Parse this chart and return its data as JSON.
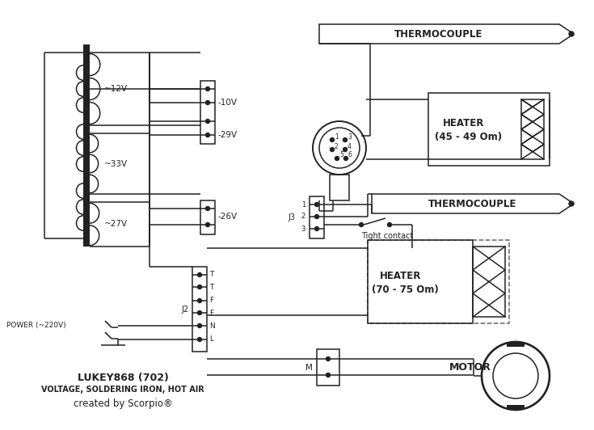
{
  "bg_color": "#ffffff",
  "line_color": "#222222",
  "title1": "LUKEY868 (702)",
  "title2": "VOLTAGE, SOLDERING IRON, HOT AIR",
  "title3": "created by Scorpio®",
  "label_12v": "~12V",
  "label_10v": "-10V",
  "label_29v": "-29V",
  "label_33v": "~33V",
  "label_27v": "~27V",
  "label_26v": "-26V",
  "label_j2": "J2",
  "label_power": "POWER (~220V)",
  "label_thermocouple1": "THERMOCOUPLE",
  "label_thermocouple2": "THERMOCOUPLE",
  "label_heater1_l1": "HEATER",
  "label_heater1_l2": "(45 - 49 Om)",
  "label_heater2_l1": "HEATER",
  "label_heater2_l2": "(70 - 75 Om)",
  "label_motor": "MOTOR",
  "label_j3": "J3",
  "label_m": "M",
  "label_tight": "Tight contact",
  "j2_pins": [
    "T",
    "T",
    "F",
    "F",
    "N",
    "L"
  ],
  "figsize": [
    7.35,
    5.32
  ],
  "dpi": 100
}
